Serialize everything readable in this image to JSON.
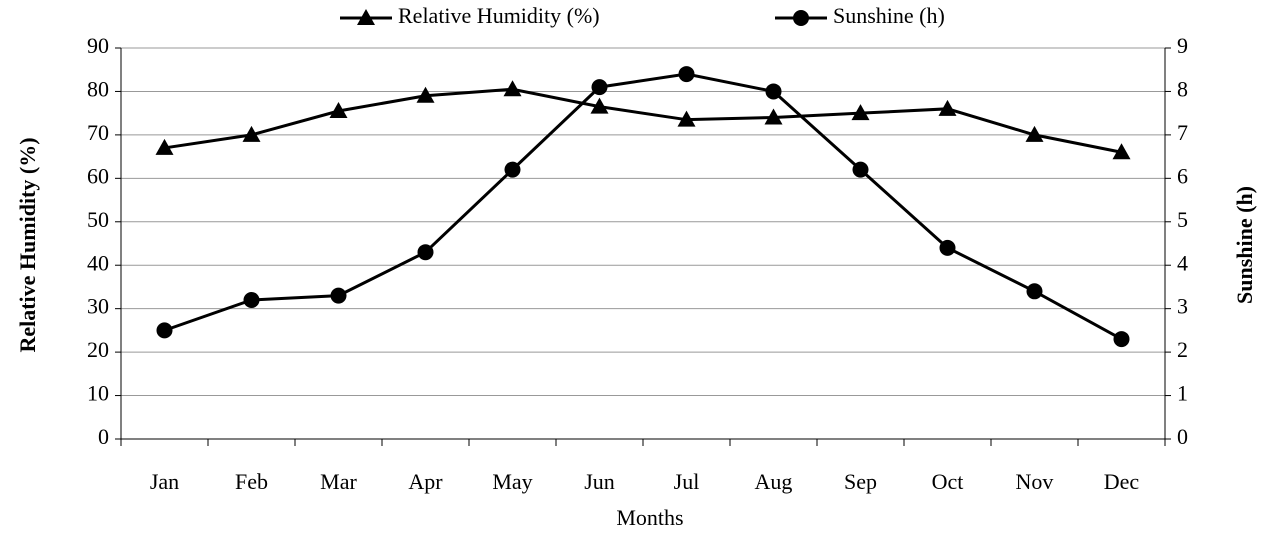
{
  "chart_data": {
    "type": "line",
    "x_label": "Months",
    "y_label": "Relative Humidity (%)",
    "y2_label": "Sunshine (h)",
    "categories": [
      "Jan",
      "Feb",
      "Mar",
      "Apr",
      "May",
      "Jun",
      "Jul",
      "Aug",
      "Sep",
      "Oct",
      "Nov",
      "Dec"
    ],
    "series": [
      {
        "name": "Relative Humidity (%)",
        "color": "#000000",
        "marker": "triangle",
        "axis": "y",
        "values": [
          67,
          70,
          75.5,
          79,
          80.5,
          76.5,
          73.5,
          74,
          75,
          76,
          70,
          66
        ]
      },
      {
        "name": "Sunshine (h)",
        "color": "#000000",
        "marker": "circle",
        "axis": "y2",
        "values": [
          2.5,
          3.2,
          3.3,
          4.3,
          6.2,
          8.1,
          8.4,
          8.0,
          6.2,
          4.4,
          3.4,
          2.3
        ]
      }
    ],
    "ylim": [
      0,
      90
    ],
    "yticks": [
      0,
      10,
      20,
      30,
      40,
      50,
      60,
      70,
      80,
      90
    ],
    "y2lim": [
      0,
      9
    ],
    "y2ticks": [
      0,
      1,
      2,
      3,
      4,
      5,
      6,
      7,
      8,
      9
    ],
    "grid": true,
    "legend": "top"
  }
}
